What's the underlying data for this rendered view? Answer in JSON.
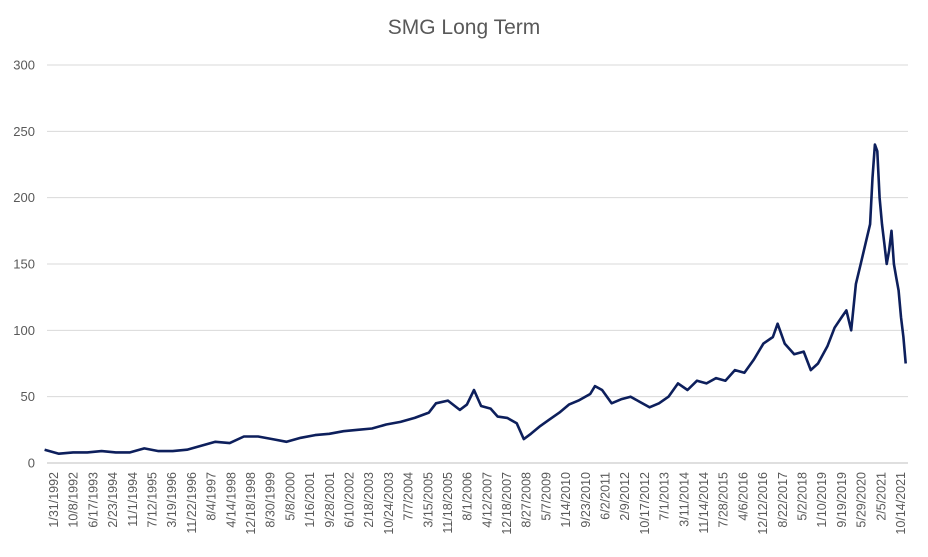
{
  "chart_data": {
    "type": "line",
    "title": "SMG Long Term",
    "xlabel": "",
    "ylabel": "",
    "ylim": [
      0,
      300
    ],
    "yticks": [
      0,
      50,
      100,
      150,
      200,
      250,
      300
    ],
    "grid": true,
    "legend": "none",
    "line_color": "#0d1f5c",
    "x_tick_labels": [
      "1/31/1992",
      "10/8/1992",
      "6/17/1993",
      "2/23/1994",
      "11/1/1994",
      "7/12/1995",
      "3/19/1996",
      "11/22/1996",
      "8/4/1997",
      "4/14/1998",
      "12/18/1998",
      "8/30/1999",
      "5/8/2000",
      "1/16/2001",
      "9/28/2001",
      "6/10/2002",
      "2/18/2003",
      "10/24/2003",
      "7/7/2004",
      "3/15/2005",
      "11/18/2005",
      "8/1/2006",
      "4/12/2007",
      "12/18/2007",
      "8/27/2008",
      "5/7/2009",
      "1/14/2010",
      "9/23/2010",
      "6/2/2011",
      "2/9/2012",
      "10/17/2012",
      "7/1/2013",
      "3/11/2014",
      "11/14/2014",
      "7/28/2015",
      "4/6/2016",
      "12/12/2016",
      "8/22/2017",
      "5/2/2018",
      "1/10/2019",
      "9/19/2019",
      "5/29/2020",
      "2/5/2021",
      "10/14/2021"
    ],
    "series": [
      {
        "x": [
          "1992-01",
          "1992-07",
          "1993-01",
          "1993-07",
          "1994-01",
          "1994-07",
          "1995-01",
          "1995-07",
          "1996-01",
          "1996-07",
          "1997-01",
          "1997-07",
          "1998-01",
          "1998-07",
          "1999-01",
          "1999-07",
          "2000-01",
          "2000-07",
          "2001-01",
          "2001-07",
          "2002-01",
          "2002-07",
          "2003-01",
          "2003-07",
          "2004-01",
          "2004-07",
          "2005-01",
          "2005-07",
          "2005-10",
          "2006-03",
          "2006-08",
          "2006-11",
          "2007-02",
          "2007-05",
          "2007-09",
          "2007-12",
          "2008-04",
          "2008-08",
          "2008-11",
          "2009-02",
          "2009-06",
          "2009-10",
          "2010-02",
          "2010-06",
          "2010-10",
          "2011-03",
          "2011-05",
          "2011-08",
          "2011-12",
          "2012-04",
          "2012-08",
          "2012-12",
          "2013-04",
          "2013-08",
          "2013-12",
          "2014-04",
          "2014-08",
          "2014-12",
          "2015-04",
          "2015-08",
          "2015-12",
          "2016-04",
          "2016-08",
          "2016-12",
          "2017-04",
          "2017-08",
          "2017-10",
          "2018-01",
          "2018-05",
          "2018-09",
          "2018-12",
          "2019-03",
          "2019-07",
          "2019-10",
          "2020-01",
          "2020-03",
          "2020-05",
          "2020-07",
          "2020-09",
          "2020-11",
          "2021-01",
          "2021-02",
          "2021-03",
          "2021-04",
          "2021-05",
          "2021-06",
          "2021-07",
          "2021-08",
          "2021-09",
          "2021-10",
          "2021-11",
          "2021-12",
          "2022-01",
          "2022-02",
          "2022-03",
          "2022-04"
        ],
        "y": [
          10,
          7,
          8,
          8,
          9,
          8,
          8,
          11,
          9,
          9,
          10,
          13,
          16,
          15,
          20,
          20,
          18,
          16,
          19,
          21,
          22,
          24,
          25,
          26,
          29,
          31,
          34,
          38,
          45,
          47,
          40,
          44,
          55,
          43,
          41,
          35,
          34,
          30,
          18,
          22,
          28,
          33,
          38,
          44,
          47,
          52,
          58,
          55,
          45,
          48,
          50,
          46,
          42,
          45,
          50,
          60,
          55,
          62,
          60,
          64,
          62,
          70,
          68,
          78,
          90,
          95,
          105,
          90,
          82,
          84,
          70,
          75,
          88,
          102,
          110,
          115,
          100,
          135,
          150,
          165,
          180,
          215,
          240,
          235,
          200,
          180,
          165,
          150,
          160,
          175,
          150,
          140,
          130,
          110,
          95,
          75
        ]
      }
    ]
  }
}
